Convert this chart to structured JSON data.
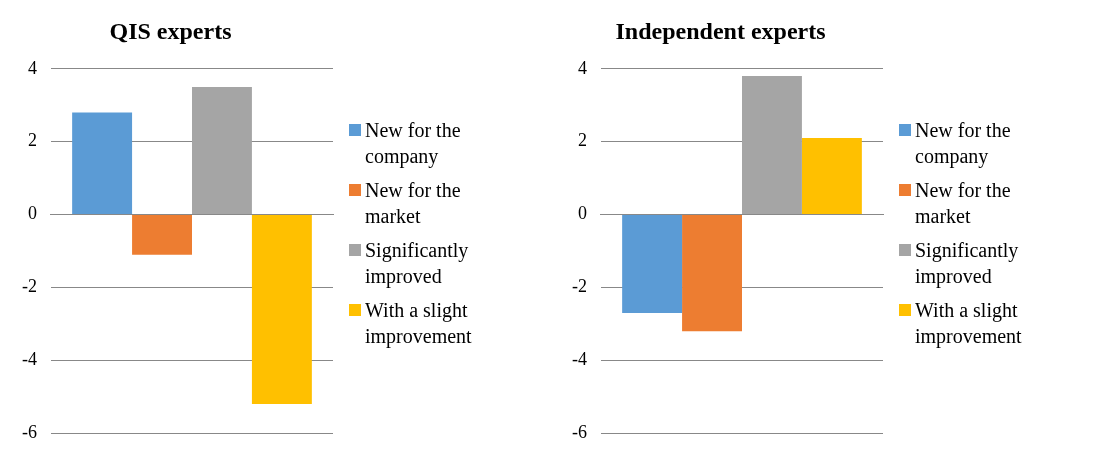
{
  "chart_data": [
    {
      "type": "bar",
      "title": "QIS experts",
      "categories": [
        null
      ],
      "series": [
        {
          "name": "New for the company",
          "color": "#5b9bd5",
          "values": [
            2.8
          ]
        },
        {
          "name": "New for the market",
          "color": "#ed7d31",
          "values": [
            -1.1
          ]
        },
        {
          "name": "Significantly improved",
          "color": "#a5a5a5",
          "values": [
            3.5
          ]
        },
        {
          "name": "With a slight improvement",
          "color": "#ffc000",
          "values": [
            -5.2
          ]
        }
      ],
      "ylim": [
        -6,
        4
      ],
      "yticks": [
        -6,
        -4,
        -2,
        0,
        2,
        4
      ],
      "grid": "y",
      "legend": "right",
      "tick_labels": "y"
    },
    {
      "type": "bar",
      "title": "Independent experts",
      "categories": [
        null
      ],
      "series": [
        {
          "name": "New for the company",
          "color": "#5b9bd5",
          "values": [
            -2.7
          ]
        },
        {
          "name": "New for the market",
          "color": "#ed7d31",
          "values": [
            -3.2
          ]
        },
        {
          "name": "Significantly improved",
          "color": "#a5a5a5",
          "values": [
            3.8
          ]
        },
        {
          "name": "With a slight improvement",
          "color": "#ffc000",
          "values": [
            2.1
          ]
        }
      ],
      "ylim": [
        -6,
        4
      ],
      "yticks": [
        -6,
        -4,
        -2,
        0,
        2,
        4
      ],
      "grid": "y",
      "legend": "right",
      "tick_labels": "y"
    }
  ]
}
